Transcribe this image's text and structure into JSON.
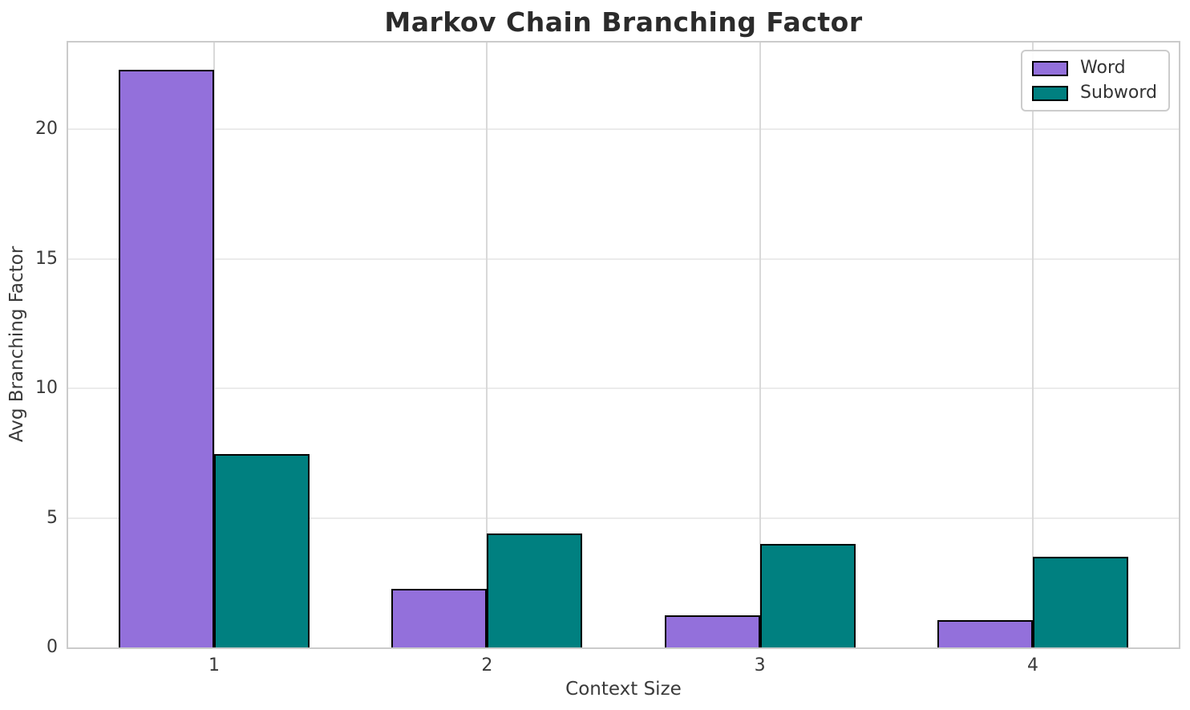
{
  "chart_data": {
    "type": "bar",
    "title": "Markov Chain Branching Factor",
    "xlabel": "Context Size",
    "ylabel": "Avg Branching Factor",
    "categories": [
      1,
      2,
      3,
      4
    ],
    "series": [
      {
        "name": "Word",
        "color": "#9370DB",
        "offset": -0.175,
        "values": [
          22.3,
          2.25,
          1.25,
          1.05
        ]
      },
      {
        "name": "Subword",
        "color": "#008080",
        "offset": 0.175,
        "values": [
          7.45,
          4.4,
          4.0,
          3.5
        ]
      }
    ],
    "bar_width": 0.35,
    "bar_edge_color": "#000000",
    "xlim": [
      0.465,
      4.535
    ],
    "ylim": [
      0,
      23.35
    ],
    "yticks": [
      0,
      5,
      10,
      15,
      20
    ],
    "xticks": [
      1,
      2,
      3,
      4
    ],
    "grid": true,
    "grid_color_h": "#ebebeb",
    "grid_color_v": "#d9d9d9",
    "legend_position": "upper right"
  }
}
